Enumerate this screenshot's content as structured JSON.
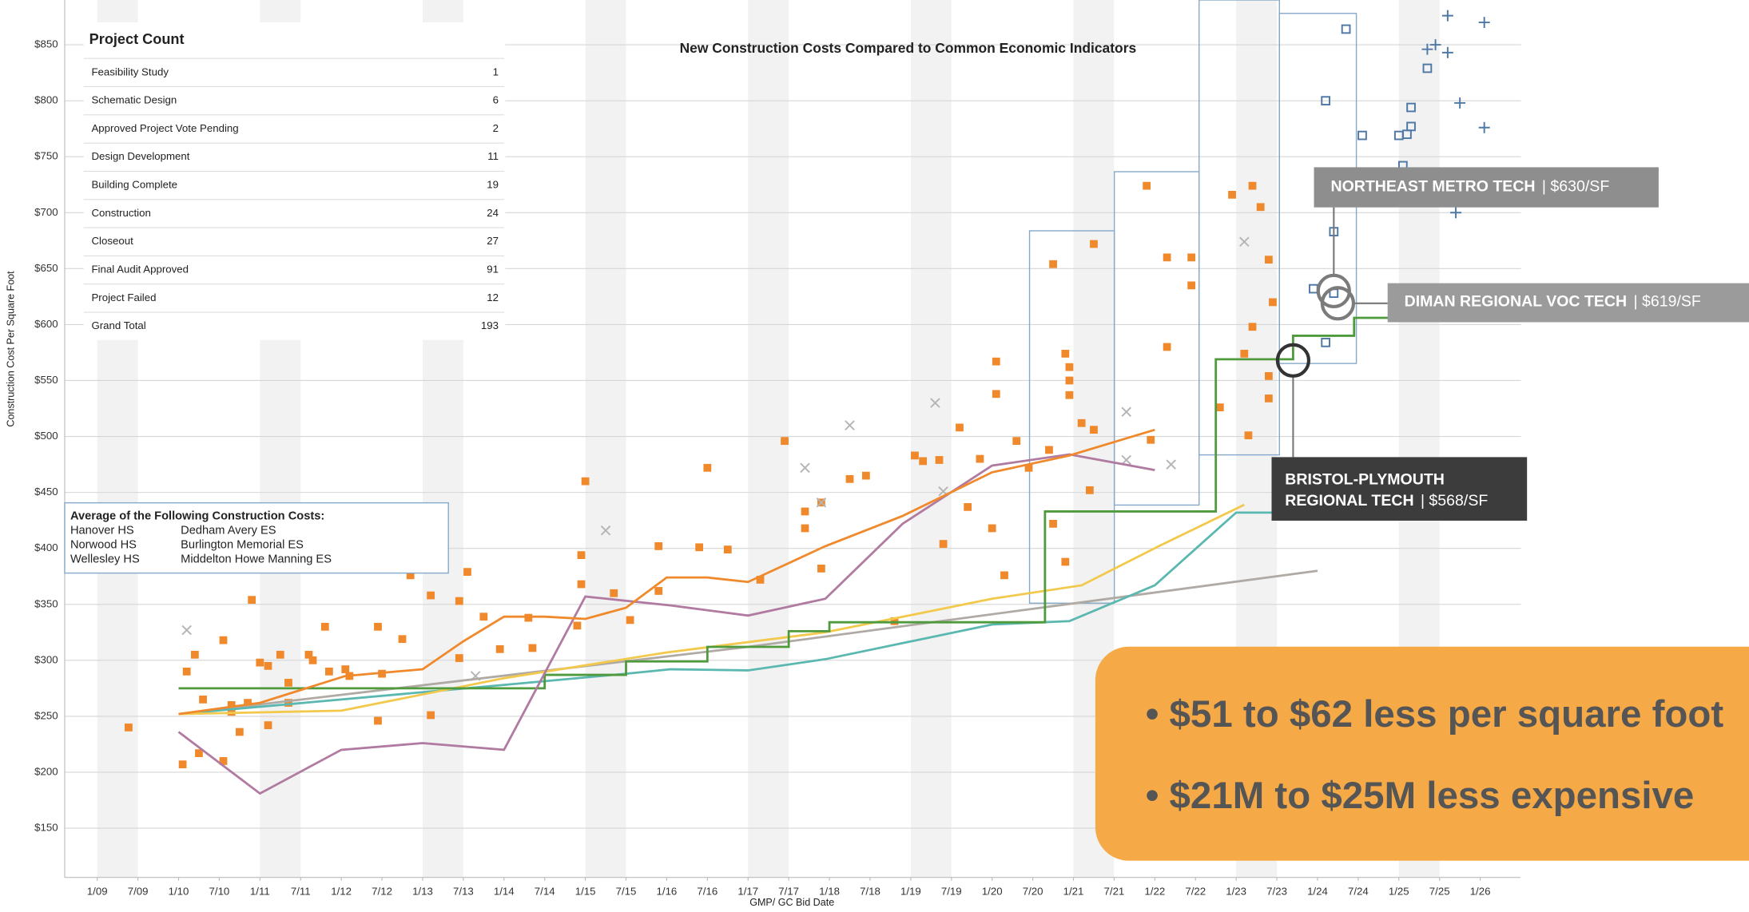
{
  "chart_data": {
    "type": "scatter",
    "title": "New Construction Costs Compared to Common Economic Indicators",
    "y_label": "Construction Cost Per Square Foot",
    "x_label": "GMP/ GC Bid Date",
    "xlim": [
      -0.8,
      35
    ],
    "ylim": [
      106,
      890
    ],
    "grid": true,
    "xticks": [
      {
        "value": 0,
        "label": "1/09"
      },
      {
        "value": 1,
        "label": "7/09"
      },
      {
        "value": 2,
        "label": "1/10"
      },
      {
        "value": 3,
        "label": "7/10"
      },
      {
        "value": 4,
        "label": "1/11"
      },
      {
        "value": 5,
        "label": "7/11"
      },
      {
        "value": 6,
        "label": "1/12"
      },
      {
        "value": 7,
        "label": "7/12"
      },
      {
        "value": 8,
        "label": "1/13"
      },
      {
        "value": 9,
        "label": "7/13"
      },
      {
        "value": 10,
        "label": "1/14"
      },
      {
        "value": 11,
        "label": "7/14"
      },
      {
        "value": 12,
        "label": "1/15"
      },
      {
        "value": 13,
        "label": "7/15"
      },
      {
        "value": 14,
        "label": "1/16"
      },
      {
        "value": 15,
        "label": "7/16"
      },
      {
        "value": 16,
        "label": "1/17"
      },
      {
        "value": 17,
        "label": "7/17"
      },
      {
        "value": 18,
        "label": "1/18"
      },
      {
        "value": 19,
        "label": "7/18"
      },
      {
        "value": 20,
        "label": "1/19"
      },
      {
        "value": 21,
        "label": "7/19"
      },
      {
        "value": 22,
        "label": "1/20"
      },
      {
        "value": 23,
        "label": "7/20"
      },
      {
        "value": 24,
        "label": "1/21"
      },
      {
        "value": 25,
        "label": "7/21"
      },
      {
        "value": 26,
        "label": "1/22"
      },
      {
        "value": 27,
        "label": "7/22"
      },
      {
        "value": 28,
        "label": "1/23"
      },
      {
        "value": 29,
        "label": "7/23"
      },
      {
        "value": 30,
        "label": "1/24"
      },
      {
        "value": 31,
        "label": "7/24"
      },
      {
        "value": 32,
        "label": "1/25"
      },
      {
        "value": 33,
        "label": "7/25"
      },
      {
        "value": 34,
        "label": "1/26"
      }
    ],
    "yticks": [
      {
        "value": 150,
        "label": "$150"
      },
      {
        "value": 200,
        "label": "$200"
      },
      {
        "value": 250,
        "label": "$250"
      },
      {
        "value": 300,
        "label": "$300"
      },
      {
        "value": 350,
        "label": "$350"
      },
      {
        "value": 400,
        "label": "$400"
      },
      {
        "value": 450,
        "label": "$450"
      },
      {
        "value": 500,
        "label": "$500"
      },
      {
        "value": 550,
        "label": "$550"
      },
      {
        "value": 600,
        "label": "$600"
      },
      {
        "value": 650,
        "label": "$650"
      },
      {
        "value": 700,
        "label": "$700"
      },
      {
        "value": 750,
        "label": "$750"
      },
      {
        "value": 800,
        "label": "$800"
      },
      {
        "value": 850,
        "label": "$850"
      }
    ],
    "series": [
      {
        "kind": "square",
        "color": "#f0892b",
        "x": [
          0.77,
          2.1,
          2.2,
          2.4,
          2.5,
          2.6,
          3.1,
          3.1,
          3.3,
          3.3,
          3.5,
          3.7,
          3.8,
          4.0,
          4.2,
          4.2,
          4.5,
          4.7,
          4.7,
          5.2,
          5.3,
          5.6,
          5.7,
          6.1,
          6.2,
          6.9,
          7.0,
          6.9,
          7.5,
          7.7,
          8.2,
          8.2,
          8.9,
          8.9,
          9.1,
          9.5,
          9.9,
          10.6,
          10.7,
          11.8,
          11.9,
          12.0,
          11.9,
          12.7,
          13.1,
          13.8,
          13.8,
          14.8,
          15.0,
          15.5,
          16.3,
          16.9,
          17.4,
          17.4,
          17.8,
          17.8,
          18.5,
          18.9,
          19.6,
          20.1,
          20.3,
          20.7,
          20.8,
          21.2,
          21.4,
          21.7,
          22.0,
          22.1,
          22.1,
          22.3,
          22.6,
          22.9,
          23.4,
          23.5,
          23.5,
          23.8,
          23.9,
          23.9,
          23.9,
          23.8,
          24.2,
          24.4,
          24.5,
          24.5,
          25.8,
          25.9,
          26.3,
          26.3,
          26.9,
          26.9,
          27.6,
          27.9,
          28.2,
          28.4,
          28.4,
          28.6,
          28.8,
          28.9,
          28.8,
          28.8,
          28.3
        ],
        "values": [
          240,
          207,
          290,
          305,
          217,
          265,
          318,
          210,
          254,
          260,
          236,
          262,
          354,
          298,
          295,
          242,
          305,
          280,
          262,
          305,
          300,
          330,
          290,
          292,
          286,
          330,
          288,
          246,
          319,
          376,
          358,
          251,
          302,
          353,
          379,
          339,
          310,
          338,
          311,
          331,
          394,
          460,
          368,
          360,
          336,
          402,
          362,
          401,
          472,
          399,
          372,
          496,
          418,
          433,
          441,
          382,
          462,
          465,
          335,
          483,
          478,
          479,
          404,
          508,
          437,
          480,
          418,
          538,
          567,
          376,
          496,
          472,
          488,
          654,
          422,
          574,
          562,
          550,
          537,
          388,
          512,
          452,
          506,
          672,
          724,
          497,
          580,
          660,
          635,
          660,
          526,
          716,
          574,
          598,
          724,
          705,
          658,
          620,
          534,
          554,
          501
        ]
      },
      {
        "kind": "hollow-square",
        "color": "#4e79a7",
        "x": [
          30.7,
          30.2,
          31.1,
          32.3,
          32.7,
          32.0,
          32.3,
          32.2,
          30.4,
          29.9,
          30.4,
          30.2,
          32.1
        ],
        "values": [
          864,
          800,
          769,
          794,
          829,
          769,
          777,
          770,
          683,
          632,
          628,
          584,
          742
        ]
      },
      {
        "kind": "cross",
        "color": "#b5b5b5",
        "x": [
          2.2,
          9.3,
          12.5,
          17.4,
          17.8,
          18.5,
          20.6,
          20.8,
          25.3,
          25.3,
          26.4,
          28.2
        ],
        "values": [
          327,
          286,
          416,
          472,
          441,
          510,
          530,
          451,
          522,
          479,
          475,
          674
        ]
      },
      {
        "kind": "plus",
        "color": "#4e79a7",
        "x": [
          33.2,
          34.1,
          32.7,
          32.9,
          33.2,
          33.5,
          34.1,
          33.4
        ],
        "values": [
          876,
          870,
          846,
          850,
          843,
          798,
          776,
          700
        ]
      },
      {
        "kind": "line",
        "color": "#b0aaa4",
        "x": [
          2,
          16,
          30
        ],
        "values": [
          252,
          312,
          380
        ]
      },
      {
        "kind": "line",
        "color": "#5bb8b0",
        "x": [
          2,
          6,
          10,
          13,
          14.1,
          16,
          17.9,
          22,
          23.9,
          26,
          28,
          29.4
        ],
        "values": [
          252,
          265,
          278,
          288,
          292,
          291,
          301,
          332,
          335,
          367,
          432,
          432
        ]
      },
      {
        "kind": "line",
        "color": "#f2c94c",
        "x": [
          2,
          6,
          10,
          14,
          17.9,
          22,
          24.2,
          26.1,
          28.2
        ],
        "values": [
          252,
          255,
          284,
          307,
          325,
          355,
          367,
          402,
          439
        ]
      },
      {
        "kind": "step",
        "color": "#4e9a3c",
        "x": [
          2,
          11,
          13,
          15,
          17,
          18,
          23.3,
          27.5,
          29.4,
          30.9,
          32
        ],
        "values": [
          275,
          287,
          299,
          312,
          326,
          334,
          433,
          569,
          590,
          606,
          606
        ]
      },
      {
        "kind": "line",
        "color": "#b07aa1",
        "x": [
          2,
          4,
          6,
          8,
          10,
          12,
          14.1,
          16,
          17.9,
          19.8,
          22,
          23.9,
          26
        ],
        "values": [
          236,
          181,
          220,
          226,
          220,
          357,
          349,
          340,
          355,
          422,
          474,
          484,
          470
        ]
      },
      {
        "kind": "line",
        "color": "#f0892b",
        "x": [
          2,
          4,
          6.1,
          8,
          9,
          10,
          11,
          12,
          13,
          14,
          15,
          16,
          17.9,
          19.8,
          22,
          23.9,
          26
        ],
        "values": [
          252,
          262,
          286,
          292,
          317,
          339,
          339,
          337,
          347,
          374,
          374,
          370,
          402,
          429,
          468,
          483,
          506
        ]
      }
    ],
    "annotations": [
      {
        "lines": [
          "NORTHEAST METRO TECH"
        ],
        "label": "| $630/SF",
        "x": 30.4,
        "y": 630
      },
      {
        "lines": [
          "DIMAN REGIONAL VOC TECH"
        ],
        "label": "| $619/SF",
        "x": 30.5,
        "y": 619
      },
      {
        "lines": [
          "BRISTOL-PLYMOUTH",
          "REGIONAL TECH"
        ],
        "label": "| $568/SF",
        "x": 29.4,
        "y": 568
      }
    ]
  },
  "project_count": {
    "title": "Project Count",
    "rows": [
      [
        "Feasibility Study",
        1
      ],
      [
        "Schematic Design",
        6
      ],
      [
        "Approved Project Vote Pending",
        2
      ],
      [
        "Design Development",
        11
      ],
      [
        "Building Complete",
        19
      ],
      [
        "Construction",
        24
      ],
      [
        "Closeout",
        27
      ],
      [
        "Final Audit Approved",
        91
      ],
      [
        "Project Failed",
        12
      ],
      [
        "Grand Total",
        193
      ]
    ]
  },
  "average_box": {
    "title": "Average of the Following Construction Costs:",
    "names": [
      [
        "Hanover HS",
        "Dedham Avery ES"
      ],
      [
        "Norwood HS",
        "Burlington Memorial ES"
      ],
      [
        "Wellesley HS",
        "Middelton Howe Manning ES"
      ]
    ]
  },
  "banner": {
    "bullets": [
      "• $51 to $62 less per square foot",
      "• $21M to $25M less expensive"
    ]
  }
}
